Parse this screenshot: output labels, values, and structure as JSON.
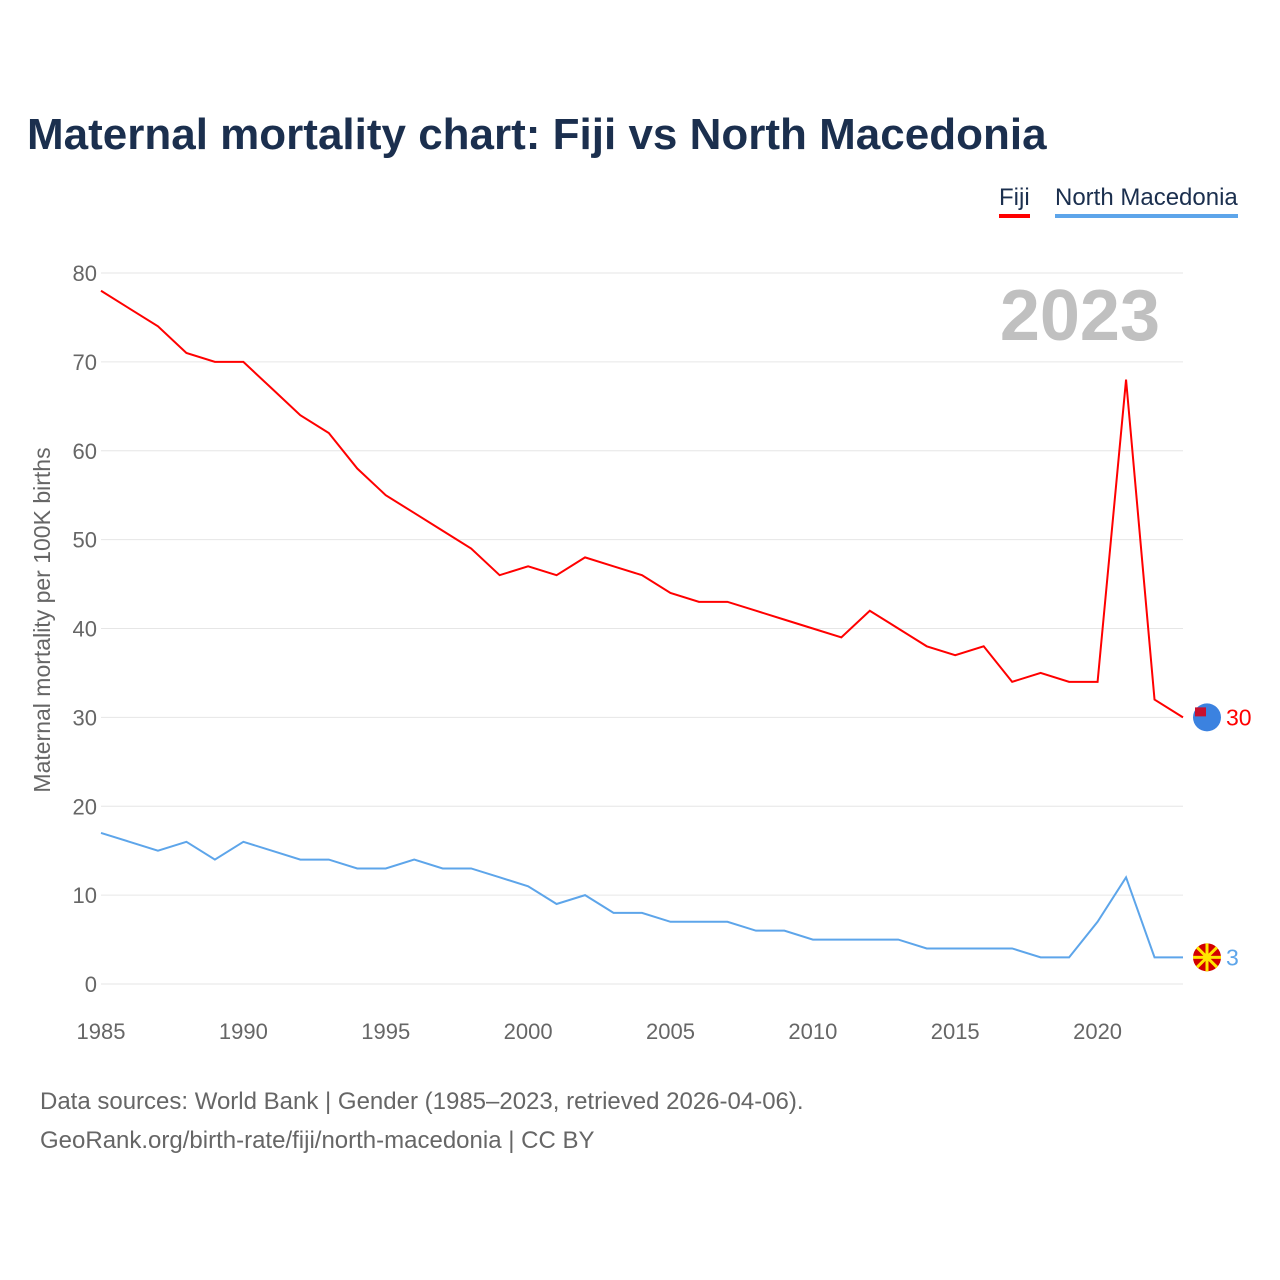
{
  "title": "Maternal mortality chart: Fiji vs North Macedonia",
  "legend": [
    {
      "label": "Fiji",
      "color": "#ff0000"
    },
    {
      "label": "North Macedonia",
      "color": "#5da5ea"
    }
  ],
  "footer": {
    "line1": "Data sources: World Bank | Gender (1985–2023, retrieved 2026-04-06).",
    "line2": "GeoRank.org/birth-rate/fiji/north-macedonia | CC BY"
  },
  "chart_data": {
    "type": "line",
    "title": "Maternal mortality chart: Fiji vs North Macedonia",
    "ylabel": "Maternal mortality per 100K births",
    "xlabel": "",
    "year_label": "2023",
    "xlim": [
      1985,
      2023
    ],
    "ylim": [
      0,
      80
    ],
    "xticks": [
      "1985",
      "1990",
      "1995",
      "2000",
      "2005",
      "2010",
      "2015",
      "2020"
    ],
    "yticks": [
      "0",
      "10",
      "20",
      "30",
      "40",
      "50",
      "60",
      "70",
      "80"
    ],
    "grid": true,
    "legend_position": "top-right",
    "x": [
      1985,
      1986,
      1987,
      1988,
      1989,
      1990,
      1991,
      1992,
      1993,
      1994,
      1995,
      1996,
      1997,
      1998,
      1999,
      2000,
      2001,
      2002,
      2003,
      2004,
      2005,
      2006,
      2007,
      2008,
      2009,
      2010,
      2011,
      2012,
      2013,
      2014,
      2015,
      2016,
      2017,
      2018,
      2019,
      2020,
      2021,
      2022,
      2023
    ],
    "series": [
      {
        "name": "Fiji",
        "color": "#ff0000",
        "end_label": "30",
        "values": [
          78,
          76,
          74,
          71,
          70,
          70,
          67,
          64,
          62,
          58,
          55,
          53,
          51,
          49,
          46,
          47,
          46,
          48,
          47,
          46,
          44,
          43,
          43,
          42,
          41,
          40,
          39,
          42,
          40,
          38,
          37,
          38,
          34,
          35,
          34,
          34,
          68,
          32,
          30
        ]
      },
      {
        "name": "North Macedonia",
        "color": "#5da5ea",
        "end_label": "3",
        "values": [
          17,
          16,
          15,
          16,
          14,
          16,
          15,
          14,
          14,
          13,
          13,
          14,
          13,
          13,
          12,
          11,
          9,
          10,
          8,
          8,
          7,
          7,
          7,
          6,
          6,
          5,
          5,
          5,
          5,
          4,
          4,
          4,
          4,
          3,
          3,
          7,
          12,
          3,
          3
        ]
      }
    ]
  }
}
